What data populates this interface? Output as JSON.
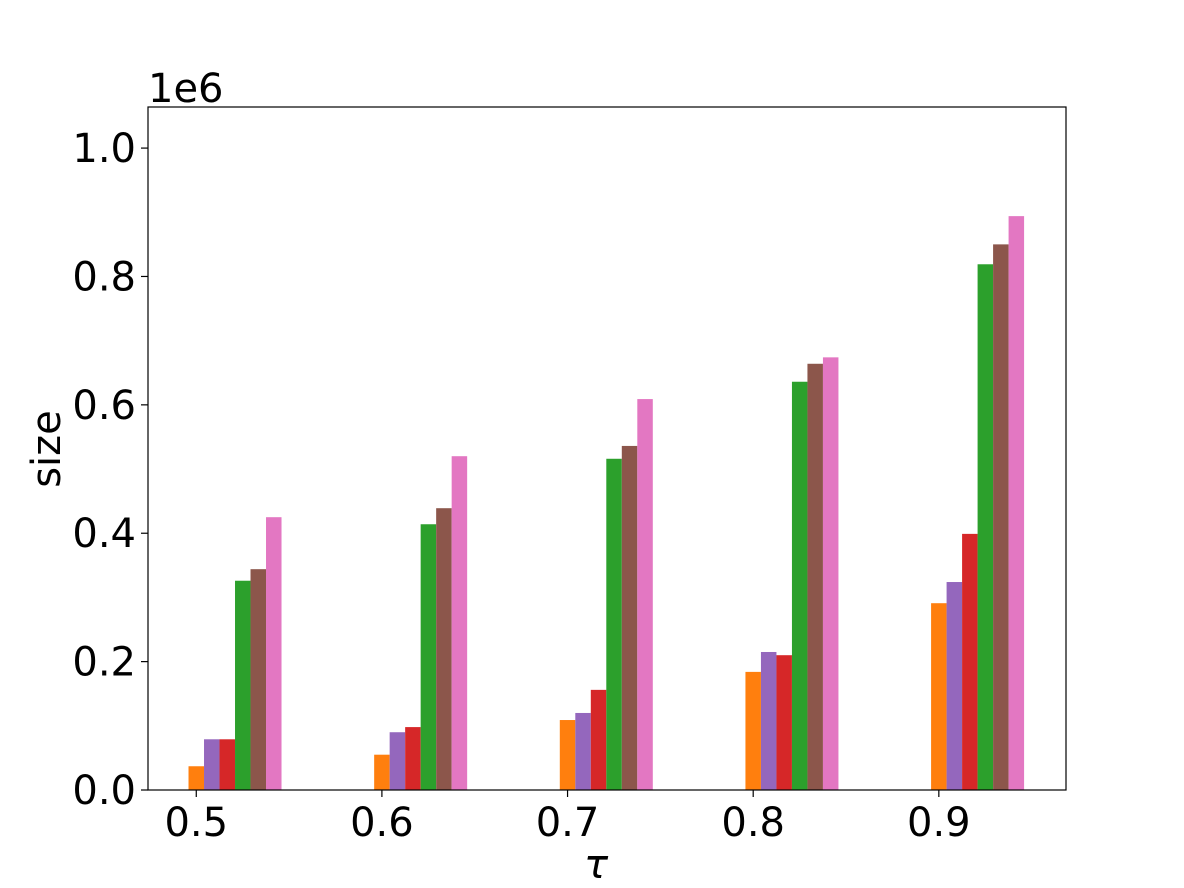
{
  "chart_data": {
    "type": "bar",
    "x": [
      0.5,
      0.6,
      0.7,
      0.8,
      0.9
    ],
    "xlim": [
      0.474,
      0.9685
    ],
    "xticks": [
      0.5,
      0.6,
      0.7,
      0.8,
      0.9
    ],
    "ylim": [
      0,
      1064000
    ],
    "yticks": [
      {
        "value": 0,
        "label": "0.0"
      },
      {
        "value": 200000,
        "label": "0.2"
      },
      {
        "value": 400000,
        "label": "0.4"
      },
      {
        "value": 600000,
        "label": "0.6"
      },
      {
        "value": 800000,
        "label": "0.8"
      },
      {
        "value": 1000000,
        "label": "1.0"
      }
    ],
    "y_offset_label": "1e6",
    "xlabel": "τ",
    "ylabel": "size",
    "series": [
      {
        "color": "#ff7f0e",
        "values": [
          37000,
          55000,
          109000,
          184000,
          291000
        ]
      },
      {
        "color": "#9467bd",
        "values": [
          79000,
          90000,
          120000,
          215000,
          324000
        ]
      },
      {
        "color": "#d62728",
        "values": [
          79000,
          98000,
          156000,
          210000,
          399000
        ]
      },
      {
        "color": "#2ca02c",
        "values": [
          326000,
          414000,
          516000,
          636000,
          819000
        ]
      },
      {
        "color": "#8c564b",
        "values": [
          344000,
          439000,
          536000,
          664000,
          850000
        ]
      },
      {
        "color": "#e377c2",
        "values": [
          425000,
          520000,
          609000,
          674000,
          894000
        ]
      }
    ]
  }
}
